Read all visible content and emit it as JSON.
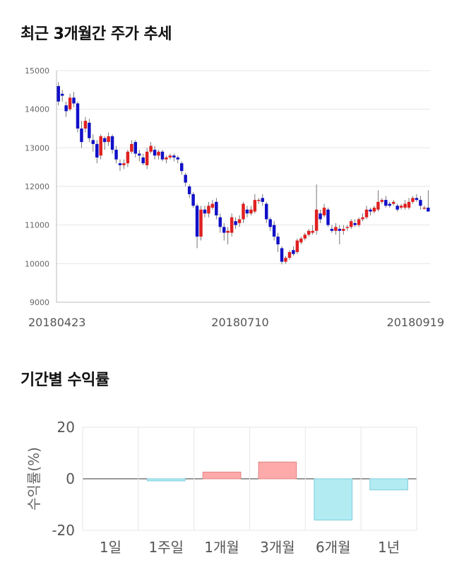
{
  "sections": {
    "price_title": "최근 3개월간 주가 추세",
    "returns_title": "기간별 수익률"
  },
  "chart_data": [
    {
      "type": "candlestick",
      "title": "최근 3개월간 주가 추세",
      "ylim": [
        9000,
        15000
      ],
      "y_ticks": [
        "15000",
        "14000",
        "13000",
        "12000",
        "11000",
        "10000",
        "9000"
      ],
      "x_tick_labels": [
        "20180423",
        "20180710",
        "20180919"
      ],
      "grid": true,
      "colors": {
        "up": "#e02020",
        "down": "#1010c8",
        "grid": "#e6e6e6"
      },
      "candles": [
        [
          14600,
          14200,
          14700,
          14100
        ],
        [
          14400,
          14350,
          14500,
          14200
        ],
        [
          14100,
          13950,
          14200,
          13800
        ],
        [
          14000,
          14300,
          14400,
          13950
        ],
        [
          14300,
          14150,
          14450,
          14050
        ],
        [
          14150,
          13500,
          14200,
          13400
        ],
        [
          13500,
          13150,
          13700,
          13000
        ],
        [
          13500,
          13700,
          13800,
          13400
        ],
        [
          13650,
          13250,
          13750,
          13150
        ],
        [
          13200,
          13100,
          13350,
          12900
        ],
        [
          13100,
          12750,
          13200,
          12600
        ],
        [
          12800,
          13300,
          13350,
          12700
        ],
        [
          13250,
          13150,
          13300,
          12950
        ],
        [
          13150,
          13300,
          13400,
          13050
        ],
        [
          13300,
          12950,
          13350,
          12850
        ],
        [
          12950,
          12700,
          13050,
          12600
        ],
        [
          12600,
          12550,
          12700,
          12400
        ],
        [
          12550,
          12600,
          12700,
          12450
        ],
        [
          12600,
          12900,
          12950,
          12500
        ],
        [
          12900,
          13100,
          13200,
          12850
        ],
        [
          13150,
          12850,
          13200,
          12750
        ],
        [
          12850,
          12800,
          12950,
          12650
        ],
        [
          12750,
          12600,
          12850,
          12550
        ],
        [
          12550,
          12900,
          13000,
          12450
        ],
        [
          12900,
          13050,
          13150,
          12850
        ],
        [
          12950,
          12800,
          13050,
          12700
        ],
        [
          12800,
          12900,
          12950,
          12700
        ],
        [
          12900,
          12700,
          12950,
          12650
        ],
        [
          12700,
          12750,
          12800,
          12600
        ],
        [
          12750,
          12800,
          12850,
          12700
        ],
        [
          12800,
          12750,
          12850,
          12650
        ],
        [
          12750,
          12700,
          12800,
          12600
        ],
        [
          12600,
          12400,
          12650,
          12300
        ],
        [
          12300,
          12100,
          12350,
          12000
        ],
        [
          12000,
          11800,
          12050,
          11700
        ],
        [
          11800,
          11500,
          11850,
          11450
        ],
        [
          11500,
          10700,
          11550,
          10400
        ],
        [
          10700,
          11400,
          11500,
          10600
        ],
        [
          11400,
          11300,
          11500,
          11200
        ],
        [
          11300,
          11500,
          11600,
          11200
        ],
        [
          11450,
          11550,
          11650,
          11400
        ],
        [
          11600,
          11250,
          11700,
          11150
        ],
        [
          11200,
          10950,
          11300,
          10800
        ],
        [
          10950,
          10800,
          11050,
          10600
        ],
        [
          10800,
          10850,
          10950,
          10500
        ],
        [
          10800,
          11200,
          11300,
          10700
        ],
        [
          11100,
          11000,
          11200,
          10900
        ],
        [
          11050,
          11150,
          11250,
          10950
        ],
        [
          11150,
          11550,
          11600,
          11050
        ],
        [
          11400,
          11300,
          11500,
          11200
        ],
        [
          11300,
          11400,
          11500,
          11250
        ],
        [
          11350,
          11650,
          11800,
          11300
        ],
        [
          11650,
          11650,
          11700,
          11550
        ],
        [
          11700,
          11600,
          11800,
          11500
        ],
        [
          11550,
          11150,
          11600,
          11050
        ],
        [
          11150,
          10950,
          11200,
          10850
        ],
        [
          11000,
          10700,
          11100,
          10600
        ],
        [
          10700,
          10500,
          10800,
          10300
        ],
        [
          10400,
          10050,
          10450,
          9980
        ],
        [
          10050,
          10150,
          10200,
          10000
        ],
        [
          10150,
          10300,
          10350,
          10100
        ],
        [
          10350,
          10250,
          10450,
          10200
        ],
        [
          10300,
          10600,
          10650,
          10250
        ],
        [
          10550,
          10650,
          10700,
          10500
        ],
        [
          10650,
          10750,
          10800,
          10600
        ],
        [
          10750,
          10850,
          10900,
          10700
        ],
        [
          10800,
          10850,
          11000,
          10750
        ],
        [
          10850,
          11400,
          12050,
          10750
        ],
        [
          11300,
          11150,
          11400,
          11050
        ],
        [
          11250,
          11450,
          11550,
          11200
        ],
        [
          11400,
          11000,
          11450,
          10950
        ],
        [
          10900,
          10850,
          11000,
          10800
        ],
        [
          10850,
          10950,
          11050,
          10750
        ],
        [
          10900,
          10850,
          11000,
          10500
        ],
        [
          10850,
          10900,
          11000,
          10750
        ],
        [
          10950,
          10950,
          11000,
          10850
        ],
        [
          10950,
          11100,
          11150,
          10900
        ],
        [
          11050,
          11000,
          11150,
          10950
        ],
        [
          11000,
          11150,
          11200,
          10950
        ],
        [
          11150,
          11200,
          11300,
          11100
        ],
        [
          11200,
          11400,
          11500,
          11150
        ],
        [
          11400,
          11350,
          11450,
          11250
        ],
        [
          11350,
          11450,
          11500,
          11300
        ],
        [
          11400,
          11600,
          11900,
          11350
        ],
        [
          11600,
          11650,
          11700,
          11550
        ],
        [
          11650,
          11500,
          11750,
          11450
        ],
        [
          11550,
          11500,
          11600,
          11450
        ],
        [
          11550,
          11600,
          11650,
          11500
        ],
        [
          11500,
          11400,
          11550,
          11350
        ],
        [
          11450,
          11500,
          11550,
          11400
        ],
        [
          11450,
          11550,
          11650,
          11400
        ],
        [
          11450,
          11600,
          11700,
          11400
        ],
        [
          11600,
          11700,
          11750,
          11550
        ],
        [
          11700,
          11650,
          11800,
          11600
        ],
        [
          11650,
          11500,
          11750,
          11400
        ],
        [
          11450,
          11450,
          11500,
          11400
        ],
        [
          11450,
          11350,
          11900,
          11350
        ]
      ]
    },
    {
      "type": "bar",
      "title": "기간별 수익률",
      "categories": [
        "1일",
        "1주일",
        "1개월",
        "3개월",
        "6개월",
        "1년"
      ],
      "values": [
        0.0,
        -0.8,
        2.6,
        6.5,
        -16.0,
        -4.3
      ],
      "ylabel": "수익률(%)",
      "ylim": [
        -20,
        20
      ],
      "y_ticks": [
        "20",
        "0",
        "-20"
      ],
      "grid": true,
      "colors": {
        "positive_fill": "#ffaaaa",
        "positive_stroke": "#e08080",
        "negative_fill": "#b2ebf2",
        "negative_stroke": "#7ccfdc",
        "grid": "#e6e6e6"
      }
    }
  ]
}
